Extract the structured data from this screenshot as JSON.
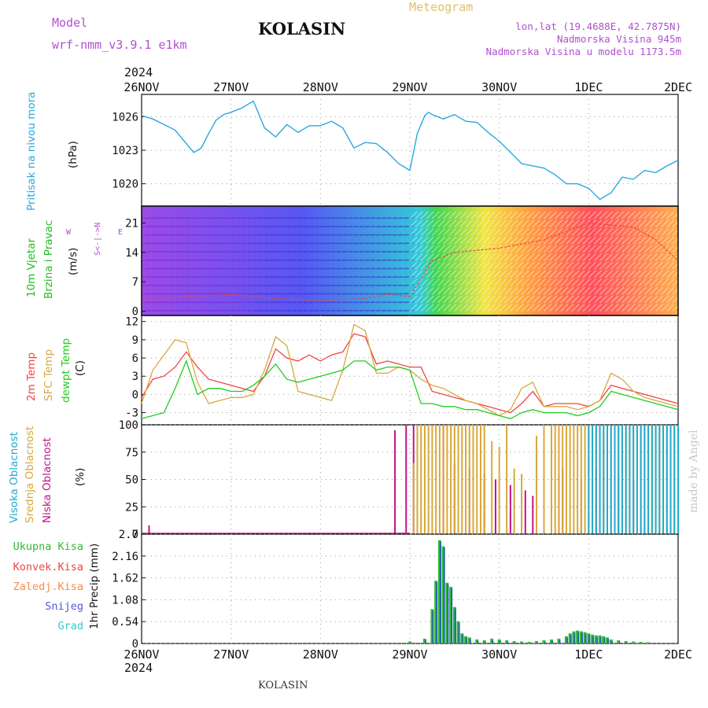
{
  "header": {
    "model_label": "Model",
    "model_name": "wrf-nmm_v3.9.1  e1km",
    "station": "KOLASIN",
    "meteogram_label": "Meteogram",
    "lonlat": "lon,lat (19.4688E, 42.7875N)",
    "elevation": "Nadmorska Visina 945m",
    "model_elevation": "Nadmorska Visina u modelu 1173.5m",
    "year_top": "2024",
    "year_bottom": "2024",
    "footer_station": "KOLASIN",
    "watermark": "made by Angel"
  },
  "time_axis": {
    "labels": [
      "26NOV",
      "27NOV",
      "28NOV",
      "29NOV",
      "30NOV",
      "1DEC",
      "2DEC"
    ],
    "hours_total": 144
  },
  "panel_labels": {
    "pressure": {
      "name": "Pritisak na nivou mora",
      "unit": "(hPa)"
    },
    "wind": {
      "name1": "10m Vjetar",
      "name2": "Brzina i Pravac",
      "unit": "(m/s)",
      "compass_ns": "S<-|->N",
      "compass_w": "W",
      "compass_e": "E"
    },
    "temp": {
      "name1": "2m Temp",
      "name2": "SFC Temp",
      "name3": "dewpt Temp",
      "unit": "(C)"
    },
    "cloud": {
      "name1": "Visoka Oblacnost",
      "name2": "Srednja Oblacnost",
      "name3": "Niska Oblacnost",
      "unit": "(%)"
    },
    "precip": {
      "unit": "1hr Precip (mm)",
      "legend": [
        "Ukupna Kisa",
        "Konvek.Kisa",
        "Zaledj.Kisa",
        "Snijeg",
        "Grad"
      ]
    }
  },
  "colors": {
    "pressure": "#29a8e0",
    "temp2m": "#ee4444",
    "sfc": "#d8a840",
    "dew": "#22cc22",
    "cloud_high": "#22aacc",
    "cloud_mid": "#d8a838",
    "cloud_low": "#c0148c",
    "precip_total": "#33bb33",
    "precip_conv": "#ee4444",
    "precip_frz": "#ff8844",
    "precip_snow": "#5555dd",
    "precip_hail": "#33cccc"
  },
  "chart_data": [
    {
      "type": "line",
      "panel": "pressure",
      "ylim": [
        1018,
        1028
      ],
      "yticks": [
        1020,
        1023,
        1026
      ],
      "x": [
        0,
        3,
        6,
        9,
        12,
        14,
        16,
        18,
        20,
        22,
        24,
        27,
        30,
        33,
        36,
        39,
        42,
        45,
        48,
        51,
        54,
        57,
        60,
        63,
        66,
        69,
        72,
        74,
        76,
        77,
        78,
        81,
        84,
        87,
        90,
        93,
        96,
        99,
        102,
        105,
        108,
        111,
        114,
        117,
        120,
        123,
        126,
        129,
        132,
        135,
        138,
        141,
        144
      ],
      "values": [
        1026.1,
        1025.8,
        1025.3,
        1024.8,
        1023.6,
        1022.8,
        1023.2,
        1024.5,
        1025.7,
        1026.2,
        1026.4,
        1026.8,
        1027.4,
        1025.0,
        1024.2,
        1025.3,
        1024.6,
        1025.2,
        1025.2,
        1025.6,
        1025.0,
        1023.2,
        1023.7,
        1023.6,
        1022.8,
        1021.8,
        1021.2,
        1024.5,
        1026.1,
        1026.4,
        1026.2,
        1025.8,
        1026.2,
        1025.6,
        1025.5,
        1024.6,
        1023.8,
        1022.8,
        1021.8,
        1021.6,
        1021.4,
        1020.8,
        1020.0,
        1020.0,
        1019.6,
        1018.6,
        1019.2,
        1020.6,
        1020.4,
        1021.2,
        1021.0,
        1021.6,
        1022.1
      ]
    },
    {
      "type": "area",
      "panel": "wind",
      "ylim": [
        -1,
        25
      ],
      "yticks": [
        0,
        7,
        14,
        21
      ],
      "x": [
        0,
        12,
        24,
        36,
        48,
        60,
        66,
        72,
        78,
        84,
        96,
        108,
        114,
        120,
        132,
        138,
        144
      ],
      "values": [
        2.5,
        3.5,
        4.0,
        3.0,
        2.5,
        3.0,
        4.0,
        3.5,
        12.0,
        14.0,
        15.0,
        17.0,
        19.0,
        21.0,
        20.0,
        17.0,
        12.0
      ]
    },
    {
      "type": "line",
      "panel": "temp",
      "ylim": [
        -5,
        13
      ],
      "yticks": [
        -3,
        0,
        3,
        6,
        9,
        12
      ],
      "x": [
        0,
        3,
        6,
        9,
        12,
        15,
        18,
        21,
        24,
        27,
        30,
        33,
        36,
        39,
        42,
        45,
        48,
        51,
        54,
        57,
        60,
        63,
        66,
        69,
        72,
        75,
        78,
        81,
        84,
        87,
        90,
        93,
        96,
        99,
        102,
        105,
        108,
        111,
        114,
        117,
        120,
        123,
        126,
        129,
        132,
        135,
        138,
        141,
        144
      ],
      "series": [
        {
          "name": "2m Temp",
          "values": [
            -0.5,
            2.5,
            3.0,
            4.5,
            7.0,
            4.5,
            2.5,
            2.0,
            1.5,
            1.0,
            0.5,
            3.0,
            7.5,
            6.0,
            5.5,
            6.5,
            5.5,
            6.5,
            7.0,
            10.0,
            9.5,
            5.0,
            5.5,
            5.0,
            4.5,
            4.5,
            0.5,
            0.0,
            -0.5,
            -1.0,
            -1.5,
            -2.0,
            -2.5,
            -3.0,
            -1.5,
            0.5,
            -2.0,
            -1.5,
            -1.5,
            -1.5,
            -2.0,
            -1.0,
            1.5,
            1.0,
            0.5,
            0.0,
            -0.5,
            -1.0,
            -1.5
          ]
        },
        {
          "name": "SFC Temp",
          "values": [
            -1.5,
            4.0,
            6.5,
            9.0,
            8.5,
            2.0,
            -1.5,
            -1.0,
            -0.5,
            -0.5,
            0.0,
            4.0,
            9.5,
            8.0,
            0.5,
            0.0,
            -0.5,
            -1.0,
            4.0,
            11.5,
            10.5,
            3.5,
            3.5,
            4.5,
            4.0,
            2.5,
            1.5,
            1.0,
            0.0,
            -1.0,
            -1.5,
            -2.5,
            -3.5,
            -2.5,
            1.0,
            2.0,
            -2.0,
            -2.0,
            -2.0,
            -2.5,
            -2.0,
            -1.0,
            3.5,
            2.5,
            0.5,
            -0.5,
            -1.0,
            -1.5,
            -2.0
          ]
        },
        {
          "name": "dewpt Temp",
          "values": [
            -4.0,
            -3.5,
            -3.0,
            1.0,
            5.5,
            0.0,
            1.0,
            1.0,
            0.5,
            0.5,
            1.5,
            3.0,
            5.0,
            2.5,
            2.0,
            2.5,
            3.0,
            3.5,
            4.0,
            5.5,
            5.5,
            4.0,
            4.5,
            4.5,
            4.0,
            -1.5,
            -1.5,
            -2.0,
            -2.0,
            -2.5,
            -2.5,
            -3.0,
            -3.5,
            -4.0,
            -3.0,
            -2.5,
            -3.0,
            -3.0,
            -3.0,
            -3.5,
            -3.0,
            -2.0,
            0.5,
            0.0,
            -0.5,
            -1.0,
            -1.5,
            -2.0,
            -2.5
          ]
        }
      ]
    },
    {
      "type": "bar",
      "panel": "cloud",
      "ylim": [
        0,
        100
      ],
      "yticks": [
        0,
        25,
        50,
        75,
        100
      ],
      "series": [
        {
          "name": "Niska Oblacnost",
          "x": [
            2,
            68,
            71,
            73,
            81,
            84,
            88,
            92,
            95,
            99,
            103,
            105,
            112,
            113,
            118,
            122,
            128,
            132
          ],
          "values": [
            8,
            95,
            100,
            100,
            100,
            65,
            60,
            55,
            50,
            45,
            40,
            35,
            55,
            60,
            50,
            60,
            55,
            50
          ]
        },
        {
          "name": "Srednja Oblacnost",
          "x": [
            73,
            74,
            75,
            76,
            77,
            78,
            79,
            80,
            81,
            82,
            83,
            84,
            85,
            86,
            87,
            88,
            89,
            90,
            91,
            92,
            94,
            96,
            98,
            100,
            102,
            106,
            108,
            110,
            111,
            112,
            113,
            114,
            115,
            116,
            117,
            118,
            119,
            120,
            121,
            122,
            123,
            124,
            125,
            126,
            127,
            128,
            129,
            130,
            131,
            132,
            133,
            134,
            135,
            136,
            137,
            138,
            139,
            140,
            141,
            142,
            143
          ],
          "values": [
            65,
            100,
            100,
            100,
            100,
            100,
            100,
            100,
            100,
            100,
            100,
            100,
            100,
            100,
            100,
            100,
            100,
            100,
            100,
            100,
            85,
            80,
            100,
            60,
            55,
            90,
            100,
            100,
            100,
            100,
            100,
            100,
            100,
            100,
            100,
            100,
            100,
            100,
            100,
            100,
            100,
            100,
            100,
            100,
            100,
            100,
            100,
            100,
            100,
            100,
            100,
            100,
            100,
            100,
            100,
            100,
            100,
            100,
            100,
            100,
            100
          ]
        },
        {
          "name": "Visoka Oblacnost",
          "x": [
            120,
            121,
            122,
            123,
            124,
            125,
            126,
            127,
            128,
            129,
            130,
            131,
            132,
            133,
            134,
            135,
            136,
            137,
            138,
            139,
            140,
            141,
            142,
            143,
            144
          ],
          "values": [
            100,
            100,
            100,
            100,
            100,
            100,
            100,
            100,
            100,
            100,
            100,
            100,
            100,
            100,
            100,
            100,
            100,
            100,
            100,
            100,
            100,
            100,
            100,
            100,
            100
          ]
        }
      ]
    },
    {
      "type": "bar",
      "panel": "precip",
      "ylim": [
        0,
        2.7
      ],
      "yticks": [
        0,
        0.54,
        1.08,
        1.62,
        2.16,
        2.7
      ],
      "series": [
        {
          "name": "Ukupna Kisa",
          "x": [
            72,
            76,
            78,
            79,
            80,
            81,
            82,
            83,
            84,
            85,
            86,
            87,
            88,
            90,
            92,
            94,
            96,
            98,
            100,
            102,
            104,
            106,
            108,
            110,
            112,
            114,
            115,
            116,
            117,
            118,
            119,
            120,
            121,
            122,
            123,
            124,
            125,
            126,
            128,
            130,
            132,
            134,
            136
          ],
          "values": [
            0.05,
            0.12,
            0.85,
            1.55,
            2.55,
            2.4,
            1.5,
            1.4,
            0.9,
            0.55,
            0.25,
            0.18,
            0.15,
            0.1,
            0.08,
            0.12,
            0.1,
            0.08,
            0.06,
            0.05,
            0.04,
            0.06,
            0.08,
            0.1,
            0.12,
            0.18,
            0.25,
            0.3,
            0.32,
            0.3,
            0.28,
            0.25,
            0.22,
            0.2,
            0.2,
            0.18,
            0.15,
            0.1,
            0.08,
            0.06,
            0.05,
            0.04,
            0.03
          ]
        }
      ]
    }
  ]
}
